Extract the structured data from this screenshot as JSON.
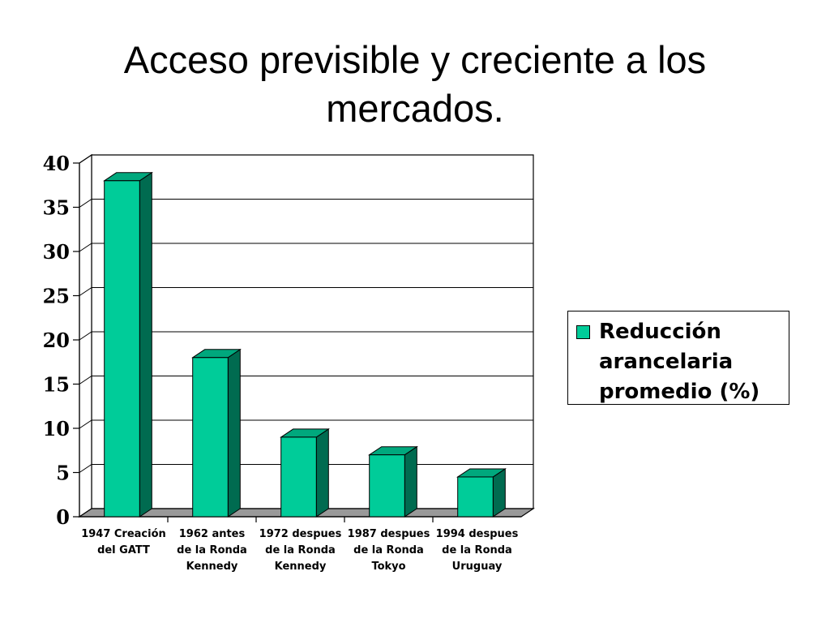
{
  "title": {
    "line1": "Acceso previsible y creciente a los",
    "line2": "mercados."
  },
  "colors": {
    "bar_front": "#00CC99",
    "bar_side": "#006B50",
    "bar_top": "#00A87D",
    "floor": "#999999",
    "background": "#FFFFFF"
  },
  "legend": {
    "lines": [
      "Reducción",
      "arancelaria",
      "promedio (%)"
    ]
  },
  "chart_data": {
    "type": "bar",
    "categories": [
      [
        "1947 Creación",
        "del GATT"
      ],
      [
        "1962 antes",
        "de la Ronda",
        "Kennedy"
      ],
      [
        "1972 despues",
        "de la Ronda",
        "Kennedy"
      ],
      [
        "1987 despues",
        "de la Ronda",
        "Tokyo"
      ],
      [
        "1994 despues",
        "de la Ronda",
        "Uruguay"
      ]
    ],
    "series": [
      {
        "name": "Reducción arancelaria promedio (%)",
        "values": [
          38,
          18,
          9,
          7,
          4.5
        ]
      }
    ],
    "ylim": [
      0,
      40
    ],
    "yticks": [
      "0",
      "5",
      "10",
      "15",
      "20",
      "25",
      "30",
      "35",
      "40"
    ],
    "grid": true,
    "legend_position": "right"
  }
}
